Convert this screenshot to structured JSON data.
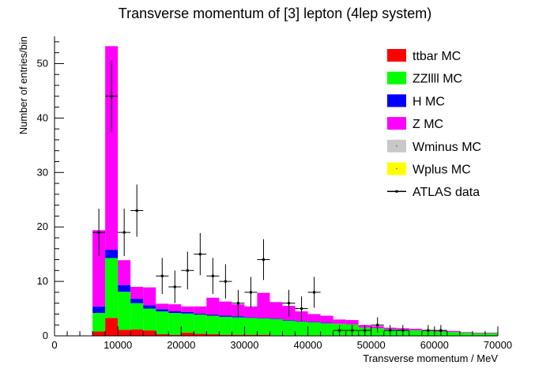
{
  "chart_data": {
    "type": "bar",
    "stacked": true,
    "title": "Transverse momentum of [3] lepton (4lep system)",
    "xlabel": "Transverse momentum / MeV",
    "ylabel": "Number of entries/bin",
    "xlim": [
      0,
      70000
    ],
    "ylim": [
      0,
      55
    ],
    "bin_width": 2000,
    "x_ticks": [
      0,
      10000,
      20000,
      30000,
      40000,
      50000,
      60000,
      70000
    ],
    "x_tick_labels": [
      "0",
      "10000",
      "20000",
      "30000",
      "40000",
      "50000",
      "60000",
      "70000"
    ],
    "y_ticks": [
      0,
      10,
      20,
      30,
      40,
      50
    ],
    "y_tick_labels": [
      "0",
      "10",
      "20",
      "30",
      "40",
      "50"
    ],
    "grid": false,
    "legend_position": "top-right",
    "bins_low_edge": [
      6000,
      8000,
      10000,
      12000,
      14000,
      16000,
      18000,
      20000,
      22000,
      24000,
      26000,
      28000,
      30000,
      32000,
      34000,
      36000,
      38000,
      40000,
      42000,
      44000,
      46000,
      48000,
      50000,
      52000,
      54000,
      56000,
      58000,
      60000,
      62000,
      64000,
      66000,
      68000
    ],
    "series": [
      {
        "name": "ttbar MC",
        "color": "#ff0000",
        "values": [
          0.8,
          3.3,
          1.1,
          1.2,
          1.0,
          0.3,
          0.2,
          0.6,
          0.4,
          0.3,
          0.2,
          0.2,
          0.2,
          0.2,
          0.1,
          0.1,
          0.1,
          0.1,
          0.1,
          0.1,
          0.1,
          0.0,
          0.0,
          0.0,
          0.0,
          0.0,
          0.0,
          0.0,
          0.0,
          0.0,
          0.0,
          0.0
        ]
      },
      {
        "name": "ZZllll MC",
        "color": "#00ff00",
        "values": [
          3.4,
          11.0,
          7.0,
          4.8,
          4.0,
          4.2,
          4.0,
          3.5,
          3.5,
          3.4,
          3.3,
          3.2,
          3.1,
          3.0,
          3.0,
          2.7,
          2.5,
          2.4,
          2.2,
          2.1,
          2.0,
          1.5,
          1.4,
          1.2,
          1.1,
          1.0,
          0.9,
          0.8,
          0.7,
          0.6,
          0.5,
          0.5
        ]
      },
      {
        "name": "H MC",
        "color": "#0000ff",
        "values": [
          1.2,
          1.5,
          1.2,
          0.8,
          0.6,
          0.4,
          0.3,
          0.3,
          0.2,
          0.2,
          0.2,
          0.2,
          0.1,
          0.1,
          0.1,
          0.1,
          0.1,
          0.1,
          0.1,
          0.0,
          0.0,
          0.0,
          0.0,
          0.0,
          0.0,
          0.0,
          0.0,
          0.0,
          0.0,
          0.0,
          0.0,
          0.0
        ]
      },
      {
        "name": "Z MC",
        "color": "#ff00ff",
        "values": [
          14.0,
          37.4,
          4.6,
          2.2,
          3.3,
          1.0,
          1.3,
          1.0,
          1.3,
          3.1,
          2.6,
          2.2,
          2.0,
          4.6,
          3.0,
          2.6,
          1.8,
          1.4,
          1.3,
          0.8,
          0.8,
          0.5,
          0.4,
          0.3,
          0.3,
          0.3,
          0.2,
          0.2,
          0.2,
          0.1,
          0.1,
          0.1
        ]
      },
      {
        "name": "Wminus MC",
        "color": "#c8c8c8",
        "values": [
          0,
          0,
          0,
          0,
          0,
          0,
          0,
          0,
          0,
          0,
          0,
          0,
          0,
          0,
          0,
          0,
          0,
          0,
          0,
          0,
          0,
          0,
          0,
          0,
          0,
          0,
          0,
          0,
          0,
          0,
          0,
          0
        ]
      },
      {
        "name": "Wplus MC",
        "color": "#ffff00",
        "values": [
          0,
          0,
          0,
          0,
          0,
          0,
          0,
          0,
          0,
          0,
          0,
          0,
          0,
          0,
          0,
          0,
          0,
          0,
          0,
          0,
          0,
          0,
          0,
          0,
          0,
          0,
          0,
          0,
          0,
          0,
          0,
          0
        ]
      }
    ],
    "data_series": {
      "name": "ATLAS data",
      "points": [
        {
          "x": 7000,
          "y": 19
        },
        {
          "x": 9000,
          "y": 44
        },
        {
          "x": 11000,
          "y": 19
        },
        {
          "x": 13000,
          "y": 23
        },
        {
          "x": 17000,
          "y": 11
        },
        {
          "x": 19000,
          "y": 9
        },
        {
          "x": 21000,
          "y": 12
        },
        {
          "x": 23000,
          "y": 15
        },
        {
          "x": 25000,
          "y": 11
        },
        {
          "x": 27000,
          "y": 10
        },
        {
          "x": 29000,
          "y": 6
        },
        {
          "x": 31000,
          "y": 8
        },
        {
          "x": 33000,
          "y": 14
        },
        {
          "x": 37000,
          "y": 6
        },
        {
          "x": 39000,
          "y": 5
        },
        {
          "x": 41000,
          "y": 8
        },
        {
          "x": 45000,
          "y": 1
        },
        {
          "x": 47000,
          "y": 1
        },
        {
          "x": 49000,
          "y": 1
        },
        {
          "x": 51000,
          "y": 2
        },
        {
          "x": 53000,
          "y": 1
        },
        {
          "x": 55000,
          "y": 1
        },
        {
          "x": 59000,
          "y": 1
        },
        {
          "x": 61000,
          "y": 1
        }
      ]
    }
  }
}
